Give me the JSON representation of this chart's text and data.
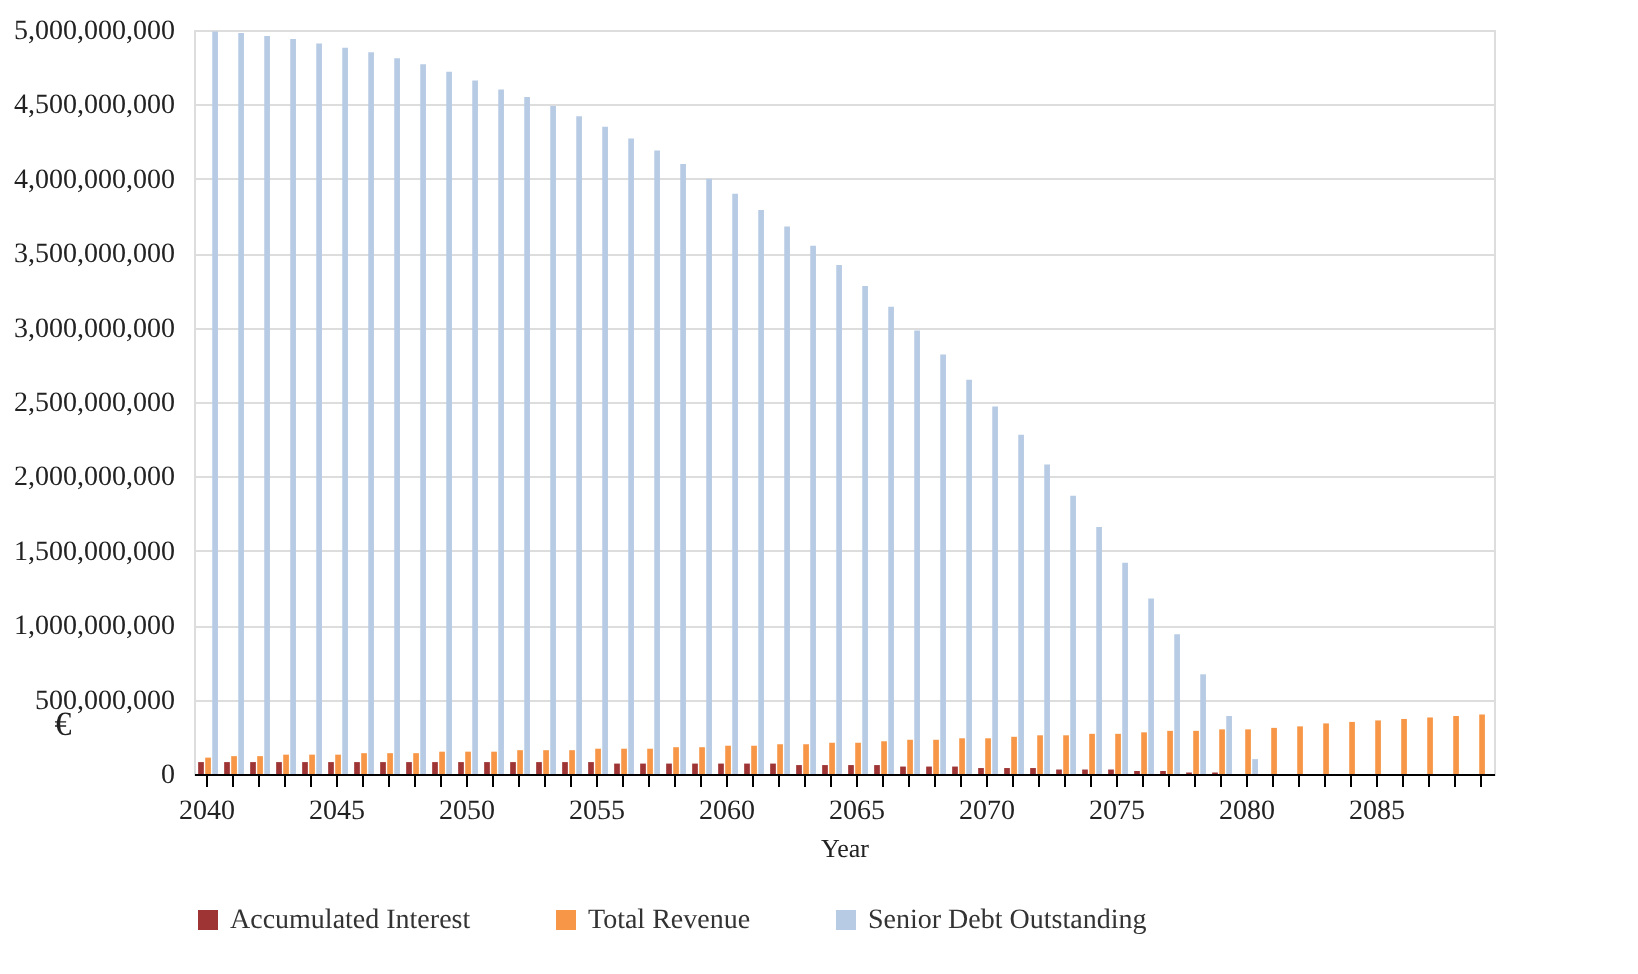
{
  "chart_data": {
    "type": "bar",
    "xlabel": "Year",
    "ylabel": "€",
    "categories": [
      "2040",
      null,
      null,
      null,
      null,
      "2045",
      null,
      null,
      null,
      null,
      "2050",
      null,
      null,
      null,
      null,
      "2055",
      null,
      null,
      null,
      null,
      "2060",
      null,
      null,
      null,
      null,
      "2065",
      null,
      null,
      null,
      null,
      "2070",
      null,
      null,
      null,
      null,
      "2075",
      null,
      null,
      null,
      null,
      "2080",
      null,
      null,
      null,
      null,
      "2085",
      null,
      null,
      null,
      null
    ],
    "series": [
      {
        "name": "Accumulated Interest",
        "color": "#9e3434",
        "values": [
          80000000,
          80000000,
          80000000,
          80000000,
          80000000,
          80000000,
          80000000,
          80000000,
          80000000,
          80000000,
          80000000,
          80000000,
          80000000,
          80000000,
          80000000,
          80000000,
          70000000,
          70000000,
          70000000,
          70000000,
          70000000,
          70000000,
          70000000,
          60000000,
          60000000,
          60000000,
          60000000,
          50000000,
          50000000,
          50000000,
          40000000,
          40000000,
          40000000,
          30000000,
          30000000,
          30000000,
          20000000,
          20000000,
          10000000,
          10000000,
          0,
          0,
          0,
          0,
          0,
          0,
          0,
          0,
          0,
          0
        ]
      },
      {
        "name": "Total Revenue",
        "color": "#f79646",
        "values": [
          110000000,
          120000000,
          120000000,
          130000000,
          130000000,
          130000000,
          140000000,
          140000000,
          140000000,
          150000000,
          150000000,
          150000000,
          160000000,
          160000000,
          160000000,
          170000000,
          170000000,
          170000000,
          180000000,
          180000000,
          190000000,
          190000000,
          200000000,
          200000000,
          210000000,
          210000000,
          220000000,
          230000000,
          230000000,
          240000000,
          240000000,
          250000000,
          260000000,
          260000000,
          270000000,
          270000000,
          280000000,
          290000000,
          290000000,
          300000000,
          300000000,
          310000000,
          320000000,
          340000000,
          350000000,
          360000000,
          370000000,
          380000000,
          390000000,
          400000000
        ]
      },
      {
        "name": "Senior Debt Outstanding",
        "color": "#b7cbe4",
        "values": [
          4990000000,
          4980000000,
          4960000000,
          4940000000,
          4910000000,
          4880000000,
          4850000000,
          4810000000,
          4770000000,
          4720000000,
          4660000000,
          4600000000,
          4550000000,
          4490000000,
          4420000000,
          4350000000,
          4270000000,
          4190000000,
          4100000000,
          4000000000,
          3900000000,
          3790000000,
          3680000000,
          3550000000,
          3420000000,
          3280000000,
          3140000000,
          2980000000,
          2820000000,
          2650000000,
          2470000000,
          2280000000,
          2080000000,
          1870000000,
          1660000000,
          1420000000,
          1180000000,
          940000000,
          670000000,
          390000000,
          100000000,
          0,
          0,
          0,
          0,
          0,
          0,
          0,
          0,
          0
        ]
      }
    ],
    "ylim": [
      0,
      5000000000
    ],
    "yticks": [
      {
        "value": 0,
        "label": "0"
      },
      {
        "value": 500000000,
        "label": "500,000,000"
      },
      {
        "value": 1000000000,
        "label": "1,000,000,000"
      },
      {
        "value": 1500000000,
        "label": "1,500,000,000"
      },
      {
        "value": 2000000000,
        "label": "2,000,000,000"
      },
      {
        "value": 2500000000,
        "label": "2,500,000,000"
      },
      {
        "value": 3000000000,
        "label": "3,000,000,000"
      },
      {
        "value": 3500000000,
        "label": "3,500,000,000"
      },
      {
        "value": 4000000000,
        "label": "4,000,000,000"
      },
      {
        "value": 4500000000,
        "label": "4,500,000,000"
      },
      {
        "value": 5000000000,
        "label": "5,000,000,000"
      }
    ],
    "grid": "y",
    "legend": "bottom"
  }
}
